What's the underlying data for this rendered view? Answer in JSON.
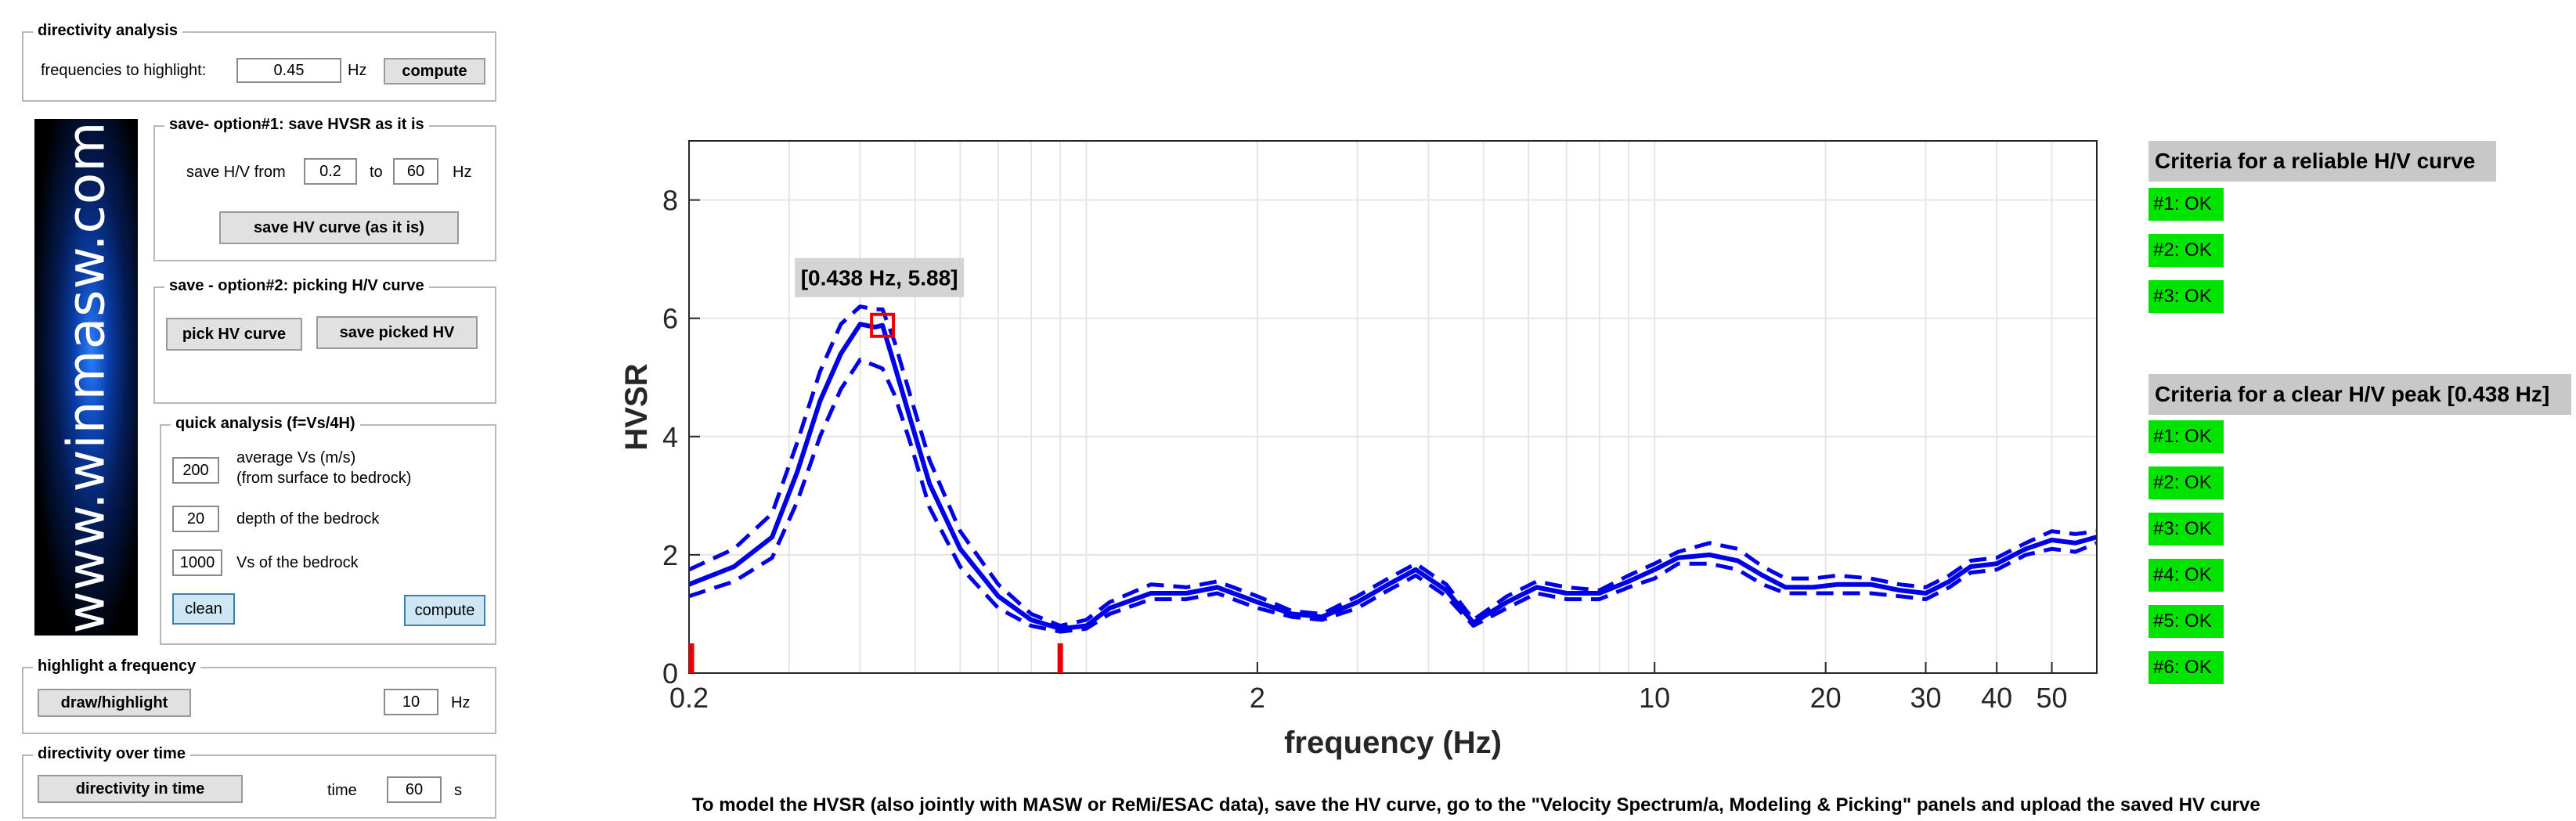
{
  "directivity": {
    "title": "directivity analysis",
    "freq_label": "frequencies to highlight:",
    "freq_value": "0.45",
    "unit": "Hz",
    "compute_label": "compute"
  },
  "logo": {
    "text": "www.winmasw.com"
  },
  "save1": {
    "title": "save- option#1: save HVSR as it is",
    "from_label": "save H/V from",
    "from_value": "0.2",
    "to_label": "to",
    "to_value": "60",
    "unit": "Hz",
    "button_label": "save HV curve (as it is)"
  },
  "save2": {
    "title": "save - option#2: picking H/V curve",
    "pick_label": "pick HV curve",
    "save_label": "save picked HV"
  },
  "quick": {
    "title": "quick analysis (f=Vs/4H)",
    "vs_value": "200",
    "vs_label": "average Vs (m/s)",
    "vs_sublabel": "(from surface to bedrock)",
    "depth_value": "20",
    "depth_label": "depth of the bedrock",
    "bedrock_value": "1000",
    "bedrock_label": "Vs of the bedrock",
    "clean_label": "clean",
    "compute_label": "compute"
  },
  "highlight": {
    "title": "highlight a frequency",
    "button_label": "draw/highlight",
    "value": "10",
    "unit": "Hz"
  },
  "directivity_time": {
    "title": "directivity over time",
    "button_label": "directivity in time",
    "time_label": "time",
    "time_value": "60",
    "unit": "s"
  },
  "criteria_reliable": {
    "title": "Criteria for a reliable H/V curve",
    "items": [
      "#1: OK",
      "#2: OK",
      "#3: OK"
    ]
  },
  "criteria_peak": {
    "title": "Criteria for a clear H/V peak [0.438 Hz]",
    "items": [
      "#1: OK",
      "#2: OK",
      "#3: OK",
      "#4: OK",
      "#5: OK",
      "#6: OK"
    ]
  },
  "bottom_note": "To model the HVSR (also jointly with MASW or ReMi/ESAC data), save the HV curve, go to the \"Velocity Spectrum/a, Modeling & Picking\" panels and upload the saved HV curve",
  "colors": {
    "curve": "#0000e6",
    "ok": "#00e400",
    "marker": "#e60000"
  },
  "chart_data": {
    "type": "line",
    "xlabel": "frequency (Hz)",
    "ylabel": "HVSR",
    "xscale": "log",
    "xlim": [
      0.2,
      60
    ],
    "ylim": [
      0,
      9
    ],
    "xticks": [
      0.2,
      2,
      10,
      20,
      30,
      40,
      50
    ],
    "xtick_labels": [
      "0.2",
      "2",
      "10",
      "20",
      "30",
      "40",
      "50"
    ],
    "yticks": [
      0,
      2,
      4,
      6,
      8
    ],
    "ytick_labels": [
      "0",
      "2",
      "4",
      "6",
      "8"
    ],
    "grid": true,
    "peak_annotation": "[0.438 Hz, 5.88]",
    "peak": {
      "x": 0.438,
      "y": 5.88
    },
    "highlight_markers_x": [
      0.2,
      0.9
    ],
    "series": [
      {
        "line": "solid",
        "x": [
          0.2,
          0.24,
          0.28,
          0.31,
          0.34,
          0.37,
          0.4,
          0.425,
          0.438,
          0.46,
          0.49,
          0.53,
          0.6,
          0.7,
          0.8,
          0.9,
          1.0,
          1.1,
          1.3,
          1.5,
          1.7,
          2.0,
          2.3,
          2.6,
          3.0,
          3.4,
          3.8,
          4.3,
          4.8,
          5.5,
          6.2,
          7.0,
          8.0,
          9.0,
          10.0,
          11.0,
          12.5,
          14.0,
          15.5,
          17.0,
          19.0,
          21.0,
          24.0,
          27.0,
          30.0,
          33.0,
          36.0,
          40.0,
          45.0,
          50.0,
          55.0,
          60.0
        ],
        "y": [
          1.5,
          1.8,
          2.3,
          3.4,
          4.6,
          5.4,
          5.9,
          5.85,
          5.88,
          5.2,
          4.3,
          3.2,
          2.1,
          1.3,
          0.9,
          0.75,
          0.8,
          1.1,
          1.35,
          1.35,
          1.45,
          1.2,
          1.0,
          0.95,
          1.2,
          1.5,
          1.75,
          1.4,
          0.85,
          1.2,
          1.45,
          1.35,
          1.35,
          1.55,
          1.75,
          1.95,
          2.0,
          1.9,
          1.65,
          1.45,
          1.45,
          1.5,
          1.5,
          1.4,
          1.35,
          1.55,
          1.8,
          1.85,
          2.1,
          2.25,
          2.2,
          2.3
        ]
      },
      {
        "line": "dashed",
        "x": [
          0.2,
          0.24,
          0.28,
          0.31,
          0.34,
          0.37,
          0.4,
          0.425,
          0.438,
          0.46,
          0.49,
          0.53,
          0.6,
          0.7,
          0.8,
          0.9,
          1.0,
          1.1,
          1.3,
          1.5,
          1.7,
          2.0,
          2.3,
          2.6,
          3.0,
          3.4,
          3.8,
          4.3,
          4.8,
          5.5,
          6.2,
          7.0,
          8.0,
          9.0,
          10.0,
          11.0,
          12.5,
          14.0,
          15.5,
          17.0,
          19.0,
          21.0,
          24.0,
          27.0,
          30.0,
          33.0,
          36.0,
          40.0,
          45.0,
          50.0,
          55.0,
          60.0
        ],
        "y": [
          1.75,
          2.1,
          2.7,
          3.9,
          5.1,
          5.9,
          6.2,
          6.15,
          6.15,
          5.6,
          4.7,
          3.6,
          2.4,
          1.5,
          1.0,
          0.8,
          0.9,
          1.2,
          1.5,
          1.45,
          1.55,
          1.3,
          1.05,
          1.0,
          1.3,
          1.6,
          1.85,
          1.5,
          0.9,
          1.3,
          1.55,
          1.45,
          1.4,
          1.65,
          1.85,
          2.05,
          2.2,
          2.1,
          1.8,
          1.6,
          1.6,
          1.65,
          1.6,
          1.5,
          1.45,
          1.65,
          1.9,
          1.95,
          2.2,
          2.4,
          2.35,
          2.4
        ]
      },
      {
        "line": "dashed",
        "x": [
          0.2,
          0.24,
          0.28,
          0.31,
          0.34,
          0.37,
          0.4,
          0.425,
          0.438,
          0.46,
          0.49,
          0.53,
          0.6,
          0.7,
          0.8,
          0.9,
          1.0,
          1.1,
          1.3,
          1.5,
          1.7,
          2.0,
          2.3,
          2.6,
          3.0,
          3.4,
          3.8,
          4.3,
          4.8,
          5.5,
          6.2,
          7.0,
          8.0,
          9.0,
          10.0,
          11.0,
          12.5,
          14.0,
          15.5,
          17.0,
          19.0,
          21.0,
          24.0,
          27.0,
          30.0,
          33.0,
          36.0,
          40.0,
          45.0,
          50.0,
          55.0,
          60.0
        ],
        "y": [
          1.3,
          1.55,
          1.95,
          2.9,
          4.0,
          4.8,
          5.3,
          5.2,
          5.15,
          4.7,
          3.9,
          2.8,
          1.8,
          1.1,
          0.8,
          0.7,
          0.75,
          1.0,
          1.25,
          1.25,
          1.35,
          1.1,
          0.95,
          0.9,
          1.1,
          1.4,
          1.65,
          1.3,
          0.8,
          1.1,
          1.35,
          1.25,
          1.25,
          1.45,
          1.6,
          1.85,
          1.85,
          1.75,
          1.5,
          1.35,
          1.35,
          1.35,
          1.35,
          1.3,
          1.25,
          1.45,
          1.7,
          1.75,
          2.0,
          2.1,
          2.05,
          2.2
        ]
      }
    ]
  }
}
